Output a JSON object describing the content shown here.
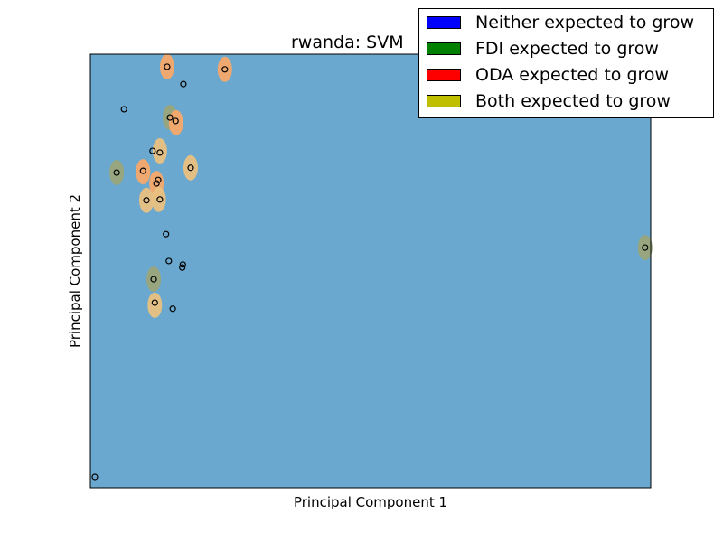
{
  "chart_data": {
    "type": "scatter",
    "title": "rwanda: SVM",
    "xlabel": "Principal Component 1",
    "ylabel": "Principal Component 2",
    "xlim": [
      0,
      100
    ],
    "ylim": [
      0,
      100
    ],
    "grid": false,
    "show_ticks": false,
    "background_color": "#6aa8cf",
    "legend": {
      "placement": "top-right",
      "entries": [
        {
          "label": "Neither expected to grow",
          "color": "#0000ff"
        },
        {
          "label": "FDI expected to grow",
          "color": "#008000"
        },
        {
          "label": "ODA expected to grow",
          "color": "#ff0000"
        },
        {
          "label": "Both expected to grow",
          "color": "#bfbf00"
        }
      ]
    },
    "regions": [
      {
        "x": 13.7,
        "y": 97.1,
        "class": "ODA expected to grow",
        "color": "#f6a86a"
      },
      {
        "x": 24.0,
        "y": 96.5,
        "class": "ODA expected to grow",
        "color": "#f6a86a"
      },
      {
        "x": 14.2,
        "y": 85.4,
        "class": "Both expected to grow",
        "color": "#9aa57a"
      },
      {
        "x": 15.3,
        "y": 84.2,
        "class": "ODA expected to grow",
        "color": "#f6a86a"
      },
      {
        "x": 12.4,
        "y": 77.7,
        "class": "Both expected to grow",
        "color": "#e9c081"
      },
      {
        "x": 4.7,
        "y": 72.7,
        "class": "Both expected to grow",
        "color": "#9aa57a"
      },
      {
        "x": 9.4,
        "y": 72.9,
        "class": "ODA expected to grow",
        "color": "#f6a86a"
      },
      {
        "x": 11.8,
        "y": 70.2,
        "class": "ODA expected to grow",
        "color": "#f6a86a"
      },
      {
        "x": 17.9,
        "y": 73.8,
        "class": "Both expected to grow",
        "color": "#e9c081"
      },
      {
        "x": 10.0,
        "y": 66.3,
        "class": "Both expected to grow",
        "color": "#e9c081"
      },
      {
        "x": 12.2,
        "y": 66.5,
        "class": "Both expected to grow",
        "color": "#e9c081"
      },
      {
        "x": 99.0,
        "y": 55.4,
        "class": "Both expected to grow",
        "color": "#9aa57a"
      },
      {
        "x": 11.3,
        "y": 48.1,
        "class": "Both expected to grow",
        "color": "#9aa57a"
      },
      {
        "x": 11.5,
        "y": 42.1,
        "class": "Both expected to grow",
        "color": "#e9c081"
      }
    ],
    "points": [
      {
        "x": 13.7,
        "y": 97.1
      },
      {
        "x": 24.0,
        "y": 96.5
      },
      {
        "x": 16.6,
        "y": 93.1
      },
      {
        "x": 6.0,
        "y": 87.3
      },
      {
        "x": 14.2,
        "y": 85.4
      },
      {
        "x": 15.2,
        "y": 84.6
      },
      {
        "x": 11.1,
        "y": 77.7
      },
      {
        "x": 12.4,
        "y": 77.3
      },
      {
        "x": 17.9,
        "y": 73.8
      },
      {
        "x": 4.7,
        "y": 72.7
      },
      {
        "x": 9.4,
        "y": 73.1
      },
      {
        "x": 12.1,
        "y": 71.0
      },
      {
        "x": 11.8,
        "y": 70.2
      },
      {
        "x": 10.0,
        "y": 66.3
      },
      {
        "x": 12.4,
        "y": 66.5
      },
      {
        "x": 13.5,
        "y": 58.5
      },
      {
        "x": 14.0,
        "y": 52.3
      },
      {
        "x": 16.5,
        "y": 51.5
      },
      {
        "x": 16.4,
        "y": 50.8
      },
      {
        "x": 11.3,
        "y": 48.1
      },
      {
        "x": 11.5,
        "y": 42.7
      },
      {
        "x": 14.7,
        "y": 41.3
      },
      {
        "x": 99.0,
        "y": 55.4
      },
      {
        "x": 0.8,
        "y": 2.5
      }
    ]
  }
}
